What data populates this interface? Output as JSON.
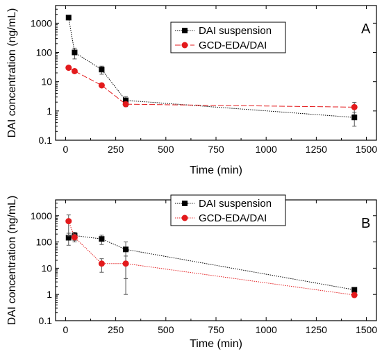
{
  "chart_data": [
    {
      "type": "line",
      "panel_label": "A",
      "xlabel": "Time (min)",
      "ylabel": "DAI concentration (ng/mL)",
      "xlim": [
        -50,
        1550
      ],
      "ylim": [
        0.1,
        4000
      ],
      "yscale": "log",
      "xticks": [
        0,
        250,
        500,
        750,
        1000,
        1250,
        1500
      ],
      "yticks": [
        0.1,
        1,
        10,
        100,
        1000
      ],
      "ytick_labels": [
        "0.1",
        "1",
        "10",
        "100",
        "1000"
      ],
      "legend_position": "top-center",
      "series": [
        {
          "name": "DAI suspension",
          "color": "#000000",
          "marker": "square",
          "line_style": "dotted",
          "x": [
            15,
            45,
            180,
            300,
            1440
          ],
          "y": [
            1550,
            100,
            26,
            2.3,
            0.6
          ],
          "error": [
            200,
            40,
            8,
            0.8,
            0.3
          ]
        },
        {
          "name": "GCD-EDA/DAI",
          "color": "#e31a1c",
          "marker": "circle",
          "line_style": "dashed",
          "x": [
            15,
            45,
            180,
            300,
            1440
          ],
          "y": [
            30,
            23,
            7.5,
            1.7,
            1.35
          ],
          "error": [
            4,
            3,
            1,
            0.3,
            0.6
          ]
        }
      ]
    },
    {
      "type": "line",
      "panel_label": "B",
      "xlabel": "Time (min)",
      "ylabel": "DAI concentration (ng/mL)",
      "xlim": [
        -50,
        1550
      ],
      "ylim": [
        0.1,
        4000
      ],
      "yscale": "log",
      "xticks": [
        0,
        250,
        500,
        750,
        1000,
        1250,
        1500
      ],
      "yticks": [
        0.1,
        1,
        10,
        100,
        1000
      ],
      "ytick_labels": [
        "0.1",
        "1",
        "10",
        "100",
        "1000"
      ],
      "legend_position": "top-center",
      "series": [
        {
          "name": "DAI suspension",
          "color": "#000000",
          "marker": "square",
          "line_style": "dotted",
          "x": [
            15,
            45,
            180,
            300,
            1440
          ],
          "y": [
            145,
            175,
            130,
            52,
            1.5
          ],
          "error": [
            70,
            60,
            50,
            48,
            0.2
          ]
        },
        {
          "name": "GCD-EDA/DAI",
          "color": "#e31a1c",
          "marker": "circle",
          "line_style": "dotted",
          "x": [
            15,
            45,
            180,
            300,
            1440
          ],
          "y": [
            620,
            150,
            15,
            15,
            0.95
          ],
          "error": [
            450,
            50,
            8,
            14,
            0.1
          ]
        }
      ]
    }
  ]
}
